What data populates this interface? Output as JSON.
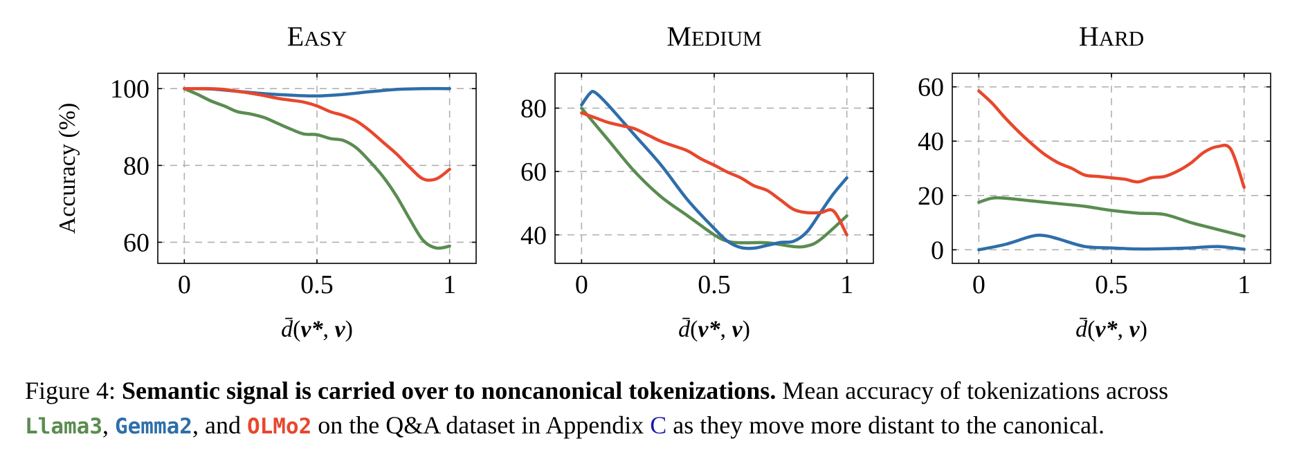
{
  "colors": {
    "Llama3": "#5a8c50",
    "Gemma2": "#2e6eaa",
    "OLMo2": "#e8472c"
  },
  "caption": {
    "label": "Figure 4:",
    "bold_text": "Semantic signal is carried over to noncanonical tokenizations.",
    "text_1": "Mean accuracy of tokenizations across",
    "model_1": "Llama3",
    "sep_1": ",",
    "model_2": "Gemma2",
    "sep_2": ", and",
    "model_3": "OLMo2",
    "text_2": "on the Q&A dataset in Appendix",
    "appendix_ref": "C",
    "text_3": "as they move more distant to the canonical."
  },
  "chart_data": [
    {
      "type": "line",
      "title": "Easy",
      "xlabel": "d̄(v*, v)",
      "ylabel": "Accuracy (%)",
      "xlim": [
        -0.1,
        1.1
      ],
      "ylim": [
        54.5,
        104
      ],
      "xticks": [
        0,
        0.5,
        1
      ],
      "xtick_labels": [
        "0",
        "0.5",
        "1"
      ],
      "yticks": [
        60,
        80,
        100
      ],
      "ytick_labels": [
        "60",
        "80",
        "100"
      ],
      "grid": true,
      "series": [
        {
          "name": "Llama3",
          "x": [
            0,
            0.05,
            0.1,
            0.15,
            0.2,
            0.25,
            0.3,
            0.35,
            0.4,
            0.45,
            0.5,
            0.55,
            0.6,
            0.65,
            0.7,
            0.75,
            0.8,
            0.85,
            0.9,
            0.95,
            1
          ],
          "y": [
            100,
            98.5,
            96.8,
            95.5,
            94,
            93.4,
            92.5,
            91,
            89.5,
            88.2,
            88,
            87,
            86.5,
            84.5,
            81,
            77,
            72,
            66,
            60.5,
            58.5,
            59
          ]
        },
        {
          "name": "Gemma2",
          "x": [
            0,
            0.1,
            0.2,
            0.3,
            0.4,
            0.5,
            0.6,
            0.7,
            0.8,
            0.9,
            1
          ],
          "y": [
            100,
            99.9,
            99.3,
            98.7,
            98.3,
            98.1,
            98.5,
            99.2,
            99.8,
            100,
            100
          ]
        },
        {
          "name": "OLMo2",
          "x": [
            0,
            0.05,
            0.1,
            0.15,
            0.2,
            0.25,
            0.3,
            0.35,
            0.4,
            0.45,
            0.5,
            0.55,
            0.6,
            0.65,
            0.7,
            0.75,
            0.8,
            0.85,
            0.9,
            0.95,
            1
          ],
          "y": [
            100,
            100,
            100,
            99.8,
            99.3,
            98.8,
            98.2,
            97.5,
            97,
            96.5,
            95.5,
            94,
            93,
            91.5,
            89,
            86,
            83,
            79.5,
            76.5,
            76.5,
            79
          ]
        }
      ]
    },
    {
      "type": "line",
      "title": "Medium",
      "xlabel": "d̄(v*, v)",
      "ylabel": "",
      "xlim": [
        -0.1,
        1.1
      ],
      "ylim": [
        31,
        91
      ],
      "xticks": [
        0,
        0.5,
        1
      ],
      "xtick_labels": [
        "0",
        "0.5",
        "1"
      ],
      "yticks": [
        40,
        60,
        80
      ],
      "ytick_labels": [
        "40",
        "60",
        "80"
      ],
      "grid": true,
      "series": [
        {
          "name": "Llama3",
          "x": [
            0,
            0.1,
            0.2,
            0.3,
            0.4,
            0.5,
            0.55,
            0.6,
            0.7,
            0.8,
            0.85,
            0.9,
            1
          ],
          "y": [
            80,
            70,
            60,
            52,
            46,
            40,
            38,
            37.5,
            37.5,
            36.3,
            36.5,
            38.5,
            46
          ]
        },
        {
          "name": "Gemma2",
          "x": [
            0,
            0.03,
            0.05,
            0.1,
            0.2,
            0.3,
            0.4,
            0.5,
            0.55,
            0.6,
            0.65,
            0.7,
            0.75,
            0.8,
            0.85,
            0.9,
            0.95,
            1
          ],
          "y": [
            81,
            84.5,
            85,
            81,
            71.5,
            62,
            51,
            42,
            38,
            36,
            35.8,
            36.7,
            37.6,
            38,
            41,
            47,
            53,
            58
          ]
        },
        {
          "name": "OLMo2",
          "x": [
            0,
            0.05,
            0.1,
            0.15,
            0.2,
            0.25,
            0.3,
            0.35,
            0.4,
            0.45,
            0.5,
            0.55,
            0.6,
            0.65,
            0.7,
            0.75,
            0.8,
            0.85,
            0.9,
            0.95,
            1
          ],
          "y": [
            78.5,
            77,
            75.5,
            74.5,
            73.5,
            71.5,
            69.5,
            68,
            66.5,
            64,
            62,
            59.8,
            58,
            55.5,
            54,
            51,
            48,
            47,
            47,
            47.5,
            40
          ]
        }
      ]
    },
    {
      "type": "line",
      "title": "Hard",
      "xlabel": "d̄(v*, v)",
      "ylabel": "",
      "xlim": [
        -0.1,
        1.1
      ],
      "ylim": [
        -5,
        65
      ],
      "xticks": [
        0,
        0.5,
        1
      ],
      "xtick_labels": [
        "0",
        "0.5",
        "1"
      ],
      "yticks": [
        0,
        20,
        40,
        60
      ],
      "ytick_labels": [
        "0",
        "20",
        "40",
        "60"
      ],
      "grid": true,
      "series": [
        {
          "name": "Llama3",
          "x": [
            0,
            0.05,
            0.1,
            0.2,
            0.3,
            0.4,
            0.5,
            0.6,
            0.7,
            0.8,
            0.9,
            1
          ],
          "y": [
            17.5,
            19,
            19,
            18,
            17,
            16,
            14.5,
            13.5,
            13,
            10,
            7.5,
            5
          ]
        },
        {
          "name": "Gemma2",
          "x": [
            0,
            0.1,
            0.2,
            0.25,
            0.3,
            0.4,
            0.5,
            0.6,
            0.7,
            0.8,
            0.9,
            1
          ],
          "y": [
            0,
            2,
            5,
            5.2,
            4,
            1.2,
            0.7,
            0.3,
            0.4,
            0.7,
            1.2,
            0.2
          ]
        },
        {
          "name": "OLMo2",
          "x": [
            0,
            0.05,
            0.1,
            0.15,
            0.2,
            0.25,
            0.3,
            0.35,
            0.4,
            0.45,
            0.5,
            0.55,
            0.6,
            0.65,
            0.7,
            0.75,
            0.8,
            0.85,
            0.9,
            0.95,
            1
          ],
          "y": [
            58.5,
            54,
            48.5,
            43.5,
            39,
            35,
            32,
            30,
            27.5,
            27,
            26.5,
            26,
            25,
            26.5,
            27,
            29,
            32,
            36,
            38,
            37,
            23
          ]
        }
      ]
    }
  ]
}
